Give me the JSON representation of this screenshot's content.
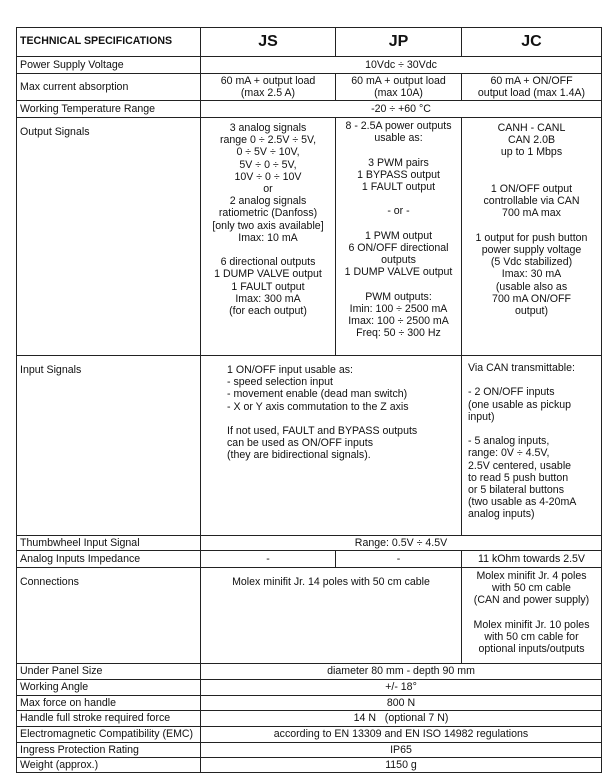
{
  "header": {
    "title": "TECHNICAL SPECIFICATIONS",
    "cols": [
      "JS",
      "JP",
      "JC"
    ]
  },
  "rows": {
    "power": {
      "label": "Power Supply Voltage",
      "value": "10Vdc ÷ 30Vdc"
    },
    "current": {
      "label": "Max current absorption",
      "js": "60 mA + output load\n(max 2.5 A)",
      "jp": "60 mA + output load\n(max 10A)",
      "jc": "60 mA + ON/OFF\noutput load (max 1.4A)"
    },
    "temp": {
      "label": "Working Temperature Range",
      "value": "-20 ÷ +60 °C"
    },
    "output": {
      "label": "Output Signals",
      "js": "3 analog signals\nrange  0 ÷ 2.5V ÷ 5V,\n0 ÷ 5V ÷ 10V,\n5V ÷ 0 ÷ 5V,\n10V ÷ 0 ÷ 10V\nor\n2 analog signals\nratiometric (Danfoss)\n[only two axis available]\nImax: 10 mA\n\n6 directional outputs\n1 DUMP VALVE output\n1 FAULT output\nImax: 300 mA\n(for each output)",
      "jp": "8 - 2.5A power outputs\nusable as:\n\n3 PWM pairs\n1 BYPASS output\n1 FAULT output\n\n- or -\n\n1 PWM output\n6 ON/OFF directional\noutputs\n1 DUMP VALVE output\n\nPWM outputs:\nImin: 100 ÷ 2500 mA\nImax: 100 ÷ 2500 mA\nFreq: 50 ÷ 300 Hz",
      "jc": "CANH - CANL\nCAN 2.0B\nup to 1 Mbps\n\n\n1 ON/OFF output\ncontrollable via CAN\n700 mA max\n\n1 output for push button\npower supply voltage\n(5 Vdc stabilized)\nImax: 30 mA\n(usable also as\n700 mA ON/OFF\noutput)"
    },
    "input": {
      "label": "Input Signals",
      "jsjp": "1 ON/OFF input usable as:\n- speed selection input\n- movement enable (dead man switch)\n- X or Y axis commutation to the Z axis\n\nIf not used, FAULT and BYPASS outputs\ncan be used as ON/OFF inputs\n(they are bidirectional signals).",
      "jc": "Via CAN transmittable:\n\n- 2 ON/OFF inputs\n(one usable as pickup\ninput)\n\n- 5 analog inputs,\nrange: 0V ÷ 4.5V,\n2.5V centered, usable\nto read 5 push button\nor 5 bilateral buttons\n(two usable as 4-20mA\nanalog inputs)"
    },
    "thumb": {
      "label": "Thumbwheel Input Signal",
      "value": "Range: 0.5V ÷ 4.5V"
    },
    "impedance": {
      "label": "Analog Inputs Impedance",
      "js": "-",
      "jp": "-",
      "jc": "11 kOhm towards 2.5V"
    },
    "connections": {
      "label": "Connections",
      "jsjp": "Molex minifit Jr. 14 poles with 50 cm cable",
      "jc": "Molex minifit Jr. 4 poles\nwith 50 cm cable\n(CAN and power supply)\n\nMolex minifit Jr. 10 poles\nwith 50 cm cable for\noptional inputs/outputs"
    },
    "size": {
      "label": "Under Panel Size",
      "value": "diameter 80 mm - depth 90 mm"
    },
    "angle": {
      "label": "Working Angle",
      "value": "+/- 18°"
    },
    "force": {
      "label": "Max force on handle",
      "value": "800 N"
    },
    "stroke": {
      "label": "Handle full stroke required force",
      "value": "14 N   (optional 7 N)"
    },
    "emc": {
      "label": "Electromagnetic Compatibility (EMC)",
      "value": "according to EN 13309 and EN ISO 14982 regulations"
    },
    "ip": {
      "label": "Ingress Protection Rating",
      "value": "IP65"
    },
    "weight": {
      "label": "Weight (approx.)",
      "value": "1150 g"
    }
  }
}
